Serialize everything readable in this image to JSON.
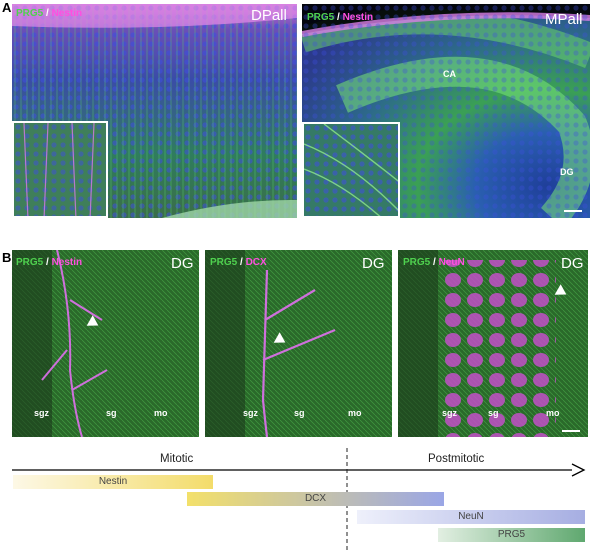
{
  "panel_a": {
    "letter": "A",
    "left": {
      "marker1": "PRG5",
      "sep": " / ",
      "marker2": "Nestin",
      "region": "DPall"
    },
    "right": {
      "marker1": "PRG5",
      "sep": " / ",
      "marker2": "Nestin",
      "region": "MPall",
      "label_ca": "CA",
      "label_dg": "DG"
    }
  },
  "panel_b": {
    "letter": "B",
    "images": [
      {
        "marker1": "PRG5",
        "sep": " / ",
        "marker2": "Nestin",
        "region": "DG",
        "zones": [
          "sgz",
          "sg",
          "mo"
        ]
      },
      {
        "marker1": "PRG5",
        "sep": " / ",
        "marker2": "DCX",
        "region": "DG",
        "zones": [
          "sgz",
          "sg",
          "mo"
        ]
      },
      {
        "marker1": "PRG5",
        "sep": " / ",
        "marker2": "NeuN",
        "region": "DG",
        "zones": [
          "sgz",
          "sg",
          "mo"
        ]
      }
    ]
  },
  "timeline": {
    "mitotic": "Mitotic",
    "postmitotic": "Postmitotic",
    "bars": [
      {
        "label": "Nestin",
        "color": "#f3dc6a"
      },
      {
        "label": "DCX",
        "color_start": "#f3e06a",
        "color_end": "#9aa6e6"
      },
      {
        "label": "NeuN",
        "color_start": "#eef0fb",
        "color_end": "#a6aee2"
      },
      {
        "label": "PRG5",
        "color_start": "#e2efe2",
        "color_end": "#5fa86f"
      }
    ]
  },
  "colors": {
    "prg5": "#4fd14f",
    "nestin": "#ff4fe0",
    "background": "#ffffff"
  }
}
